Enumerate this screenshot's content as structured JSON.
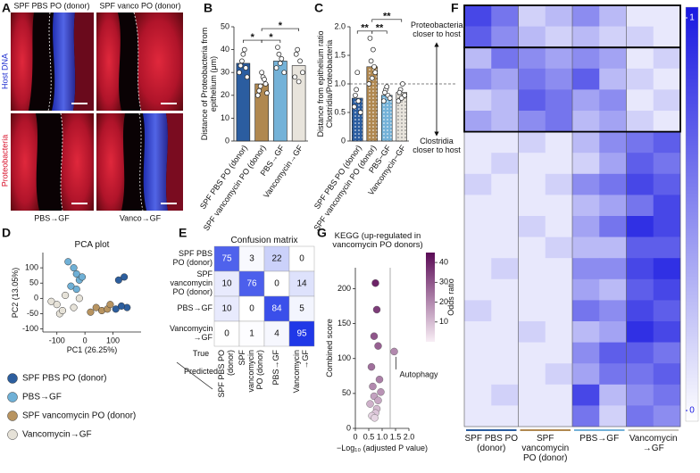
{
  "panel_labels": [
    "A",
    "B",
    "C",
    "D",
    "E",
    "F",
    "G"
  ],
  "panel_a": {
    "titles": [
      "SPF PBS PO (donor)",
      "SPF vanco PO (donor)"
    ],
    "bottom_labels": [
      "PBS→GF",
      "Vanco→GF"
    ],
    "stain_labels": [
      "Proteobacteria",
      "Host DNA"
    ]
  },
  "chart_data": [
    {
      "type": "bar",
      "ylabel": "Distance of Proteobacteria from epithelium (μm)",
      "categories": [
        "SPF PBS PO (donor)",
        "SPF vancomycin PO (donor)",
        "PBS→GF",
        "Vancomycin→GF"
      ],
      "values": [
        34,
        25,
        35,
        33
      ],
      "colors": [
        "#2b5da0",
        "#b08850",
        "#74b2d8",
        "#e8e4dc"
      ],
      "points": [
        [
          30,
          35,
          40,
          28,
          33,
          38,
          32
        ],
        [
          20,
          24,
          28,
          25,
          22,
          30,
          27,
          21
        ],
        [
          32,
          38,
          36,
          30,
          41,
          34
        ],
        [
          28,
          40,
          35,
          30,
          38,
          26
        ]
      ],
      "ylim": [
        0,
        50
      ],
      "yticks": [
        0,
        10,
        20,
        30,
        40,
        50
      ],
      "significance": [
        {
          "from": 0,
          "to": 1,
          "label": "*"
        },
        {
          "from": 1,
          "to": 2,
          "label": "*"
        },
        {
          "from": 1,
          "to": 3,
          "label": "*"
        }
      ]
    },
    {
      "type": "bar",
      "ylabel": "Distance from epithelium ratio Clostridia/Proteobacteria",
      "categories": [
        "SPF PBS PO (donor)",
        "SPF vancomycin PO (donor)",
        "PBS−GF",
        "Vancomycin−GF"
      ],
      "values": [
        0.75,
        1.3,
        0.8,
        0.85
      ],
      "colors": [
        "#2b5da0",
        "#b08850",
        "#74b2d8",
        "#e8e4dc"
      ],
      "pattern": "dots",
      "points": [
        [
          0.6,
          0.9,
          0.7,
          0.5,
          0.8,
          1.2
        ],
        [
          1.0,
          1.4,
          1.6,
          1.2,
          1.8,
          1.1,
          1.3
        ],
        [
          0.7,
          0.9,
          0.8,
          0.75,
          0.85,
          0.95
        ],
        [
          0.7,
          0.9,
          1.0,
          0.8,
          0.85,
          0.75
        ]
      ],
      "ylim": [
        0,
        2
      ],
      "yticks": [
        0,
        0.5,
        {
          "value": 1,
          "label": "1.0"
        },
        1.5,
        {
          "value": 2,
          "label": "2.0"
        }
      ],
      "hline": 1,
      "significance": [
        {
          "from": 0,
          "to": 1,
          "label": "**"
        },
        {
          "from": 1,
          "to": 2,
          "label": "**"
        },
        {
          "from": 1,
          "to": 3,
          "label": "**"
        }
      ],
      "annotations": [
        "Proteobacteria closer to host",
        "Clostridia closer to host"
      ]
    },
    {
      "type": "scatter",
      "title": "PCA plot",
      "xlabel": "PC1 (26.25%)",
      "ylabel": "PC2 (13.05%)",
      "xlim": [
        -150,
        200
      ],
      "xticks": [
        -100,
        0,
        100
      ],
      "ylim": [
        -110,
        150
      ],
      "yticks": [
        -100,
        -50,
        0,
        50,
        100
      ],
      "series": [
        {
          "name": "SPF PBS PO (donor)",
          "color": "#2c5e9e",
          "x": [
            120,
            140,
            150,
            110,
            130
          ],
          "values": [
            60,
            70,
            -30,
            -35,
            -25
          ]
        },
        {
          "name": "PBS→GF",
          "color": "#6fb0d6",
          "x": [
            -60,
            -40,
            -30,
            -20,
            -10,
            -50,
            -30
          ],
          "values": [
            120,
            100,
            80,
            60,
            70,
            40,
            30
          ]
        },
        {
          "name": "SPF vancomycin PO (donor)",
          "color": "#b89460",
          "x": [
            40,
            60,
            80,
            20,
            90
          ],
          "values": [
            -30,
            -40,
            -35,
            -45,
            -20
          ]
        },
        {
          "name": "Vancomycin→GF",
          "color": "#e6e2d8",
          "x": [
            -120,
            -100,
            -90,
            -80,
            -70,
            -40,
            -20
          ],
          "values": [
            -10,
            -20,
            -50,
            -40,
            10,
            -30,
            0
          ]
        }
      ]
    },
    {
      "type": "confusion_matrix",
      "title": "Confusion matrix",
      "rows": [
        "SPF PBS PO (donor)",
        "SPF vancomycin PO (donor)",
        "PBS→GF",
        "Vancomycin →GF"
      ],
      "columns": [
        "SPF PBS PO (donor)",
        "SPF vancomycin PO (donor)",
        "PBS→GF",
        "Vancomycin →GF"
      ],
      "row_title": "True",
      "column_title": "Predicted",
      "z": [
        [
          75,
          3,
          22,
          0
        ],
        [
          10,
          76,
          0,
          14
        ],
        [
          10,
          0,
          84,
          5
        ],
        [
          0,
          1,
          4,
          95
        ]
      ],
      "zlim": [
        0,
        100
      ]
    },
    {
      "type": "bubble",
      "title": "KEGG (up-regulated in vancomycin PO donors)",
      "xlabel": "−Log₁₀ (adjusted P value)",
      "ylabel": "Combined score",
      "colorbar_label": "Odds ratio",
      "x": [
        0.75,
        0.8,
        0.7,
        0.85,
        0.6,
        0.65,
        0.9,
        0.7,
        0.55,
        0.8,
        0.95,
        0.75,
        0.85,
        0.62,
        0.72,
        1.45
      ],
      "values": [
        208,
        170,
        132,
        118,
        88,
        60,
        70,
        46,
        35,
        28,
        52,
        22,
        40,
        18,
        15,
        110
      ],
      "odds_ratio": [
        40,
        35,
        30,
        28,
        25,
        20,
        22,
        15,
        12,
        10,
        18,
        8,
        14,
        6,
        5,
        20
      ],
      "xlim": [
        0,
        2
      ],
      "xticks": [
        0,
        0.5,
        {
          "value": 1,
          "label": "1.0"
        },
        1.5,
        {
          "value": 2,
          "label": "2.0"
        }
      ],
      "ylim": [
        0,
        230
      ],
      "yticks": [
        0,
        50,
        100,
        150,
        200
      ],
      "zlim": [
        0,
        45
      ],
      "zticks": [
        10,
        20,
        30,
        40
      ],
      "vline": 1.3,
      "annotations": [
        {
          "text": "Autophagy",
          "point": 15
        }
      ]
    },
    {
      "type": "heatmap",
      "groups": [
        "SPF PBS PO (donor)",
        "SPF vancomycin PO (donor)",
        "PBS→GF",
        "Vancomycin →GF"
      ],
      "group_colors": [
        "#2b5da0",
        "#b08850",
        "#74b2d8",
        "#c8c4bc"
      ],
      "zlim": [
        0,
        1
      ],
      "zticks": [
        0,
        1
      ],
      "boxes": [
        [
          0,
          1
        ],
        [
          2,
          5
        ]
      ],
      "z": [
        [
          0.8,
          0.6,
          0.2,
          0.3,
          0.5,
          0.3,
          0.1,
          0.1
        ],
        [
          0.7,
          0.5,
          0.3,
          0.2,
          0.3,
          0.2,
          0.2,
          0.1
        ],
        [
          0.3,
          0.6,
          0.5,
          0.4,
          0.5,
          0.4,
          0.1,
          0.2
        ],
        [
          0.5,
          0.4,
          0.6,
          0.5,
          0.7,
          0.3,
          0.2,
          0.1
        ],
        [
          0.2,
          0.3,
          0.7,
          0.6,
          0.4,
          0.5,
          0.1,
          0.2
        ],
        [
          0.4,
          0.3,
          0.5,
          0.6,
          0.3,
          0.4,
          0.2,
          0.1
        ],
        [
          0.1,
          0.1,
          0.2,
          0.1,
          0.3,
          0.5,
          0.6,
          0.7
        ],
        [
          0.1,
          0.2,
          0.1,
          0.1,
          0.2,
          0.4,
          0.7,
          0.6
        ],
        [
          0.2,
          0.1,
          0.1,
          0.2,
          0.5,
          0.6,
          0.8,
          0.7
        ],
        [
          0.1,
          0.1,
          0.1,
          0.1,
          0.3,
          0.4,
          0.6,
          0.8
        ],
        [
          0.1,
          0.1,
          0.2,
          0.1,
          0.4,
          0.6,
          0.9,
          0.8
        ],
        [
          0.1,
          0.1,
          0.1,
          0.2,
          0.3,
          0.3,
          0.7,
          0.7
        ],
        [
          0.1,
          0.2,
          0.1,
          0.1,
          0.5,
          0.5,
          0.8,
          0.9
        ],
        [
          0.1,
          0.1,
          0.1,
          0.1,
          0.4,
          0.3,
          0.7,
          0.8
        ],
        [
          0.2,
          0.1,
          0.1,
          0.1,
          0.6,
          0.5,
          0.8,
          0.7
        ],
        [
          0.1,
          0.1,
          0.2,
          0.1,
          0.3,
          0.4,
          0.9,
          0.8
        ],
        [
          0.1,
          0.1,
          0.1,
          0.1,
          0.5,
          0.7,
          0.7,
          0.6
        ],
        [
          0.1,
          0.1,
          0.1,
          0.2,
          0.4,
          0.6,
          0.6,
          0.7
        ],
        [
          0.1,
          0.2,
          0.1,
          0.1,
          0.8,
          0.3,
          0.5,
          0.6
        ],
        [
          0.1,
          0.1,
          0.1,
          0.1,
          0.6,
          0.2,
          0.6,
          0.5
        ]
      ]
    }
  ]
}
